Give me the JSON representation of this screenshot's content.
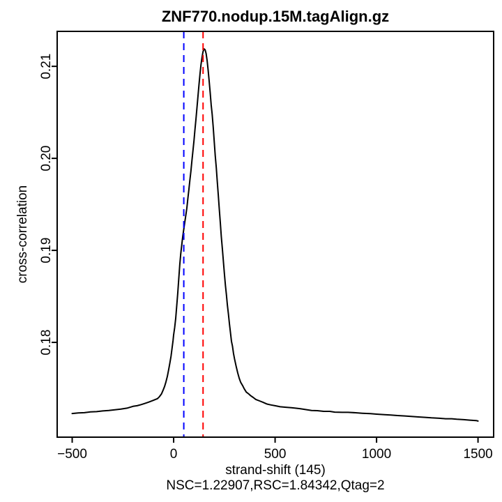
{
  "figure": {
    "title": "ZNF770.nodup.15M.tagAlign.gz",
    "xlabel": "strand-shift (145)",
    "ylabel": "cross-correlation",
    "footer": "NSC=1.22907,RSC=1.84342,Qtag=2"
  },
  "colors": {
    "background": "#ffffff",
    "foreground": "#000000",
    "curve": "#000000",
    "phantom_peak_line": "#0000ff",
    "fragment_length_line": "#ff0000"
  },
  "chart_data": {
    "type": "line",
    "title": "ZNF770.nodup.15M.tagAlign.gz",
    "xlabel": "strand-shift (145)",
    "ylabel": "cross-correlation",
    "subtitle": "NSC=1.22907,RSC=1.84342,Qtag=2",
    "grid": false,
    "legend_position": "none",
    "xlim": [
      -574,
      1577
    ],
    "ylim": [
      0.1697,
      0.2138
    ],
    "x_ticks": {
      "values": [
        -500,
        0,
        500,
        1000,
        1500
      ],
      "labels": [
        "−500",
        "0",
        "500",
        "1000",
        "1500"
      ]
    },
    "y_ticks": {
      "values": [
        0.18,
        0.19,
        0.2,
        0.21
      ],
      "labels": [
        "0.18",
        "0.19",
        "0.20",
        "0.21"
      ]
    },
    "vlines": [
      {
        "name": "phantom-peak-line",
        "x": 50,
        "color": "#0000ff",
        "linestyle": "dashed"
      },
      {
        "name": "fragment-length-line",
        "x": 145,
        "color": "#ff0000",
        "linestyle": "dashed"
      }
    ],
    "series": [
      {
        "name": "cross-correlation-curve",
        "color": "#000000",
        "linestyle": "solid",
        "points": [
          [
            -500,
            0.17227
          ],
          [
            -470,
            0.17233
          ],
          [
            -440,
            0.17236
          ],
          [
            -410,
            0.17244
          ],
          [
            -380,
            0.17247
          ],
          [
            -350,
            0.17255
          ],
          [
            -320,
            0.1726
          ],
          [
            -290,
            0.17268
          ],
          [
            -260,
            0.17275
          ],
          [
            -230,
            0.17285
          ],
          [
            -200,
            0.17305
          ],
          [
            -180,
            0.17312
          ],
          [
            -160,
            0.17324
          ],
          [
            -140,
            0.17338
          ],
          [
            -125,
            0.1735
          ],
          [
            -110,
            0.17362
          ],
          [
            -100,
            0.1737
          ],
          [
            -90,
            0.1738
          ],
          [
            -80,
            0.17388
          ],
          [
            -70,
            0.1741
          ],
          [
            -60,
            0.1744
          ],
          [
            -52,
            0.1748
          ],
          [
            -45,
            0.1752
          ],
          [
            -38,
            0.1757
          ],
          [
            -31,
            0.1763
          ],
          [
            -25,
            0.177
          ],
          [
            -19,
            0.1777
          ],
          [
            -13,
            0.1785
          ],
          [
            -7,
            0.1795
          ],
          [
            -3,
            0.1802
          ],
          [
            0,
            0.1808
          ],
          [
            5,
            0.1816
          ],
          [
            10,
            0.1826
          ],
          [
            15,
            0.1839
          ],
          [
            20,
            0.1853
          ],
          [
            25,
            0.1868
          ],
          [
            30,
            0.1884
          ],
          [
            35,
            0.1896
          ],
          [
            40,
            0.1906
          ],
          [
            45,
            0.1915
          ],
          [
            50,
            0.1923
          ],
          [
            55,
            0.1931
          ],
          [
            60,
            0.1938
          ],
          [
            65,
            0.1946
          ],
          [
            70,
            0.1956
          ],
          [
            75,
            0.1966
          ],
          [
            80,
            0.1976
          ],
          [
            85,
            0.1986
          ],
          [
            90,
            0.1997
          ],
          [
            95,
            0.2008
          ],
          [
            100,
            0.2019
          ],
          [
            105,
            0.2031
          ],
          [
            110,
            0.2043
          ],
          [
            115,
            0.2055
          ],
          [
            120,
            0.2068
          ],
          [
            125,
            0.208
          ],
          [
            130,
            0.2092
          ],
          [
            135,
            0.2102
          ],
          [
            140,
            0.211
          ],
          [
            145,
            0.2116
          ],
          [
            150,
            0.2119
          ],
          [
            155,
            0.2118
          ],
          [
            160,
            0.2114
          ],
          [
            165,
            0.2106
          ],
          [
            170,
            0.2096
          ],
          [
            175,
            0.2084
          ],
          [
            180,
            0.2072
          ],
          [
            185,
            0.2058
          ],
          [
            190,
            0.2048
          ],
          [
            195,
            0.2034
          ],
          [
            200,
            0.2018
          ],
          [
            205,
            0.2003
          ],
          [
            210,
            0.199
          ],
          [
            215,
            0.1975
          ],
          [
            220,
            0.196
          ],
          [
            225,
            0.1945
          ],
          [
            230,
            0.193
          ],
          [
            235,
            0.1915
          ],
          [
            240,
            0.1902
          ],
          [
            245,
            0.1888
          ],
          [
            250,
            0.1875
          ],
          [
            255,
            0.1862
          ],
          [
            260,
            0.1852
          ],
          [
            265,
            0.184
          ],
          [
            270,
            0.1831
          ],
          [
            275,
            0.182
          ],
          [
            280,
            0.1811
          ],
          [
            285,
            0.1801
          ],
          [
            290,
            0.1796
          ],
          [
            295,
            0.1788
          ],
          [
            300,
            0.1782
          ],
          [
            308,
            0.1774
          ],
          [
            316,
            0.17667
          ],
          [
            323,
            0.1761
          ],
          [
            330,
            0.17568
          ],
          [
            340,
            0.1753
          ],
          [
            347,
            0.175
          ],
          [
            358,
            0.1746
          ],
          [
            370,
            0.1744
          ],
          [
            380,
            0.1742
          ],
          [
            392,
            0.17402
          ],
          [
            405,
            0.1738
          ],
          [
            423,
            0.17364
          ],
          [
            440,
            0.1735
          ],
          [
            460,
            0.1733
          ],
          [
            480,
            0.1732
          ],
          [
            502,
            0.17311
          ],
          [
            525,
            0.173
          ],
          [
            553,
            0.17295
          ],
          [
            580,
            0.1729
          ],
          [
            600,
            0.17285
          ],
          [
            622,
            0.1728
          ],
          [
            650,
            0.1727
          ],
          [
            680,
            0.1726
          ],
          [
            708,
            0.17258
          ],
          [
            740,
            0.1725
          ],
          [
            770,
            0.1725
          ],
          [
            794,
            0.17242
          ],
          [
            830,
            0.1724
          ],
          [
            860,
            0.1724
          ],
          [
            897,
            0.17235
          ],
          [
            930,
            0.1723
          ],
          [
            970,
            0.17225
          ],
          [
            1000,
            0.1722
          ],
          [
            1040,
            0.17215
          ],
          [
            1070,
            0.1721
          ],
          [
            1103,
            0.17205
          ],
          [
            1140,
            0.172
          ],
          [
            1170,
            0.17195
          ],
          [
            1206,
            0.1719
          ],
          [
            1240,
            0.17185
          ],
          [
            1270,
            0.1718
          ],
          [
            1309,
            0.17175
          ],
          [
            1340,
            0.1717
          ],
          [
            1370,
            0.1717
          ],
          [
            1395,
            0.17165
          ],
          [
            1430,
            0.1716
          ],
          [
            1460,
            0.17155
          ],
          [
            1491,
            0.1715
          ],
          [
            1500,
            0.17145
          ]
        ]
      }
    ]
  }
}
